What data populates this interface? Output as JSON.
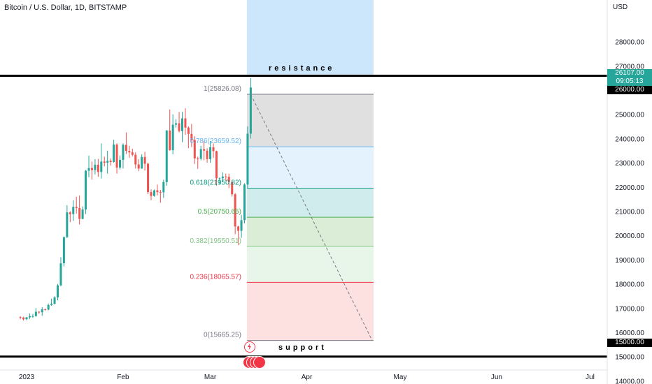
{
  "title": "Bitcoin / U.S. Dollar, 1D, BITSTAMP",
  "colors": {
    "up": "#26a69a",
    "down": "#ef5350",
    "resistance_zone": "#bbdefb",
    "fib_1_786": "#e0e0e0",
    "fib_786_618": "#e3f2fd",
    "fib_618_5": "#d1ecec",
    "fib_5_382": "#dcedd7",
    "fib_382_236": "#e8f5e9",
    "fib_236_0": "#fde0e0"
  },
  "axis": {
    "currency": "USD",
    "y_ticks": [
      "28000.00",
      "27000.00",
      "26000.00",
      "25000.00",
      "24000.00",
      "23000.00",
      "22000.00",
      "21000.00",
      "20000.00",
      "19000.00",
      "18000.00",
      "17000.00",
      "16000.00",
      "15000.00",
      "14000.00"
    ],
    "x_ticks": [
      "2023",
      "Feb",
      "Mar",
      "Apr",
      "May",
      "Jun",
      "Jul"
    ]
  },
  "price_tags": {
    "current_price": "26107.00",
    "countdown": "09:05:13",
    "resistance": "26000.00",
    "support": "15000.00"
  },
  "annotations": {
    "resistance_label": "resistance",
    "support_label": "support"
  },
  "fib_labels": [
    {
      "text": "1(25826.08)",
      "color": "#787b86",
      "level": 25826.08
    },
    {
      "text": "0.786(23659.52)",
      "color": "#64b5f6",
      "level": 23659.52
    },
    {
      "text": "0.618(21950.82)",
      "color": "#089981",
      "level": 21950.82
    },
    {
      "text": "0.5(20750.66)",
      "color": "#4caf50",
      "level": 20750.66
    },
    {
      "text": "0.382(19550.51)",
      "color": "#81c784",
      "level": 19550.51
    },
    {
      "text": "0.236(18065.57)",
      "color": "#f23645",
      "level": 18065.57
    },
    {
      "text": "0(15665.25)",
      "color": "#787b86",
      "level": 15665.25
    }
  ],
  "chart_data": {
    "type": "candlestick",
    "title": "Bitcoin / U.S. Dollar, 1D, BITSTAMP",
    "y_range": [
      14000,
      28600
    ],
    "x_range": [
      "2022-12-30",
      "2023-07-05"
    ],
    "grid": false,
    "horizontal_lines": [
      {
        "price": 26000,
        "label": "resistance"
      },
      {
        "price": 15000,
        "label": "support"
      }
    ],
    "resistance_zone": {
      "from": 26000,
      "to": 28600,
      "x_from": "2023-03-13",
      "x_to": "2023-04-22"
    },
    "fibonacci": {
      "x_from": "2023-03-13",
      "x_to": "2023-04-22",
      "levels": [
        {
          "ratio": 1,
          "price": 25826.08
        },
        {
          "ratio": 0.786,
          "price": 23659.52
        },
        {
          "ratio": 0.618,
          "price": 21950.82
        },
        {
          "ratio": 0.5,
          "price": 20750.66
        },
        {
          "ratio": 0.382,
          "price": 19550.51
        },
        {
          "ratio": 0.236,
          "price": 18065.57
        },
        {
          "ratio": 0,
          "price": 15665.25
        }
      ]
    },
    "trend_line": {
      "from": {
        "date": "2023-03-14",
        "price": 25826.08
      },
      "to": {
        "date": "2023-04-22",
        "price": 15665.25
      }
    },
    "candles": [
      {
        "d": "2022-12-30",
        "o": 16630,
        "h": 16660,
        "l": 16540,
        "c": 16610
      },
      {
        "d": "2022-12-31",
        "o": 16610,
        "h": 16640,
        "l": 16490,
        "c": 16540
      },
      {
        "d": "2023-01-01",
        "o": 16540,
        "h": 16630,
        "l": 16500,
        "c": 16620
      },
      {
        "d": "2023-01-02",
        "o": 16620,
        "h": 16780,
        "l": 16550,
        "c": 16670
      },
      {
        "d": "2023-01-03",
        "o": 16670,
        "h": 16760,
        "l": 16600,
        "c": 16670
      },
      {
        "d": "2023-01-04",
        "o": 16670,
        "h": 17000,
        "l": 16650,
        "c": 16850
      },
      {
        "d": "2023-01-05",
        "o": 16850,
        "h": 16880,
        "l": 16760,
        "c": 16830
      },
      {
        "d": "2023-01-06",
        "o": 16830,
        "h": 17040,
        "l": 16680,
        "c": 16950
      },
      {
        "d": "2023-01-07",
        "o": 16950,
        "h": 16980,
        "l": 16900,
        "c": 16940
      },
      {
        "d": "2023-01-08",
        "o": 16940,
        "h": 17190,
        "l": 16910,
        "c": 17130
      },
      {
        "d": "2023-01-09",
        "o": 17130,
        "h": 17390,
        "l": 17100,
        "c": 17180
      },
      {
        "d": "2023-01-10",
        "o": 17180,
        "h": 17490,
        "l": 17150,
        "c": 17440
      },
      {
        "d": "2023-01-11",
        "o": 17440,
        "h": 18000,
        "l": 17320,
        "c": 17940
      },
      {
        "d": "2023-01-12",
        "o": 17940,
        "h": 19100,
        "l": 17900,
        "c": 18850
      },
      {
        "d": "2023-01-13",
        "o": 18850,
        "h": 19950,
        "l": 18720,
        "c": 19930
      },
      {
        "d": "2023-01-14",
        "o": 19930,
        "h": 21250,
        "l": 19890,
        "c": 20950
      },
      {
        "d": "2023-01-15",
        "o": 20950,
        "h": 21000,
        "l": 20550,
        "c": 20880
      },
      {
        "d": "2023-01-16",
        "o": 20880,
        "h": 21450,
        "l": 20600,
        "c": 21180
      },
      {
        "d": "2023-01-17",
        "o": 21180,
        "h": 21600,
        "l": 20900,
        "c": 21130
      },
      {
        "d": "2023-01-18",
        "o": 21130,
        "h": 21650,
        "l": 20450,
        "c": 20680
      },
      {
        "d": "2023-01-19",
        "o": 20680,
        "h": 21200,
        "l": 20670,
        "c": 21070
      },
      {
        "d": "2023-01-20",
        "o": 21070,
        "h": 22700,
        "l": 20880,
        "c": 22670
      },
      {
        "d": "2023-01-21",
        "o": 22670,
        "h": 23300,
        "l": 22400,
        "c": 22780
      },
      {
        "d": "2023-01-22",
        "o": 22780,
        "h": 23050,
        "l": 22300,
        "c": 22700
      },
      {
        "d": "2023-01-23",
        "o": 22700,
        "h": 23150,
        "l": 22520,
        "c": 22920
      },
      {
        "d": "2023-01-24",
        "o": 22920,
        "h": 23160,
        "l": 22420,
        "c": 22620
      },
      {
        "d": "2023-01-25",
        "o": 22620,
        "h": 23800,
        "l": 22350,
        "c": 23050
      },
      {
        "d": "2023-01-26",
        "o": 23050,
        "h": 23250,
        "l": 22850,
        "c": 23000
      },
      {
        "d": "2023-01-27",
        "o": 23000,
        "h": 23500,
        "l": 22550,
        "c": 23080
      },
      {
        "d": "2023-01-28",
        "o": 23080,
        "h": 23180,
        "l": 22880,
        "c": 23030
      },
      {
        "d": "2023-01-29",
        "o": 23030,
        "h": 23950,
        "l": 23000,
        "c": 23750
      },
      {
        "d": "2023-01-30",
        "o": 23750,
        "h": 23800,
        "l": 22550,
        "c": 22800
      },
      {
        "d": "2023-01-31",
        "o": 22800,
        "h": 23300,
        "l": 22720,
        "c": 23120
      },
      {
        "d": "2023-02-01",
        "o": 23120,
        "h": 23800,
        "l": 22760,
        "c": 23740
      },
      {
        "d": "2023-02-02",
        "o": 23740,
        "h": 24250,
        "l": 23360,
        "c": 23490
      },
      {
        "d": "2023-02-03",
        "o": 23490,
        "h": 23700,
        "l": 23200,
        "c": 23430
      },
      {
        "d": "2023-02-04",
        "o": 23430,
        "h": 23580,
        "l": 23260,
        "c": 23330
      },
      {
        "d": "2023-02-05",
        "o": 23330,
        "h": 23430,
        "l": 22760,
        "c": 22930
      },
      {
        "d": "2023-02-06",
        "o": 22930,
        "h": 23150,
        "l": 22650,
        "c": 22760
      },
      {
        "d": "2023-02-07",
        "o": 22760,
        "h": 23350,
        "l": 22750,
        "c": 23240
      },
      {
        "d": "2023-02-08",
        "o": 23240,
        "h": 23450,
        "l": 22680,
        "c": 22960
      },
      {
        "d": "2023-02-09",
        "o": 22960,
        "h": 23000,
        "l": 21700,
        "c": 21790
      },
      {
        "d": "2023-02-10",
        "o": 21790,
        "h": 21900,
        "l": 21450,
        "c": 21630
      },
      {
        "d": "2023-02-11",
        "o": 21630,
        "h": 21900,
        "l": 21600,
        "c": 21860
      },
      {
        "d": "2023-02-12",
        "o": 21860,
        "h": 22100,
        "l": 21650,
        "c": 21790
      },
      {
        "d": "2023-02-13",
        "o": 21790,
        "h": 21880,
        "l": 21350,
        "c": 21780
      },
      {
        "d": "2023-02-14",
        "o": 21780,
        "h": 22300,
        "l": 21550,
        "c": 22200
      },
      {
        "d": "2023-02-15",
        "o": 22200,
        "h": 24350,
        "l": 22050,
        "c": 24330
      },
      {
        "d": "2023-02-16",
        "o": 24330,
        "h": 25200,
        "l": 23500,
        "c": 23520
      },
      {
        "d": "2023-02-17",
        "o": 23520,
        "h": 25000,
        "l": 23350,
        "c": 24570
      },
      {
        "d": "2023-02-18",
        "o": 24570,
        "h": 24800,
        "l": 24450,
        "c": 24630
      },
      {
        "d": "2023-02-19",
        "o": 24630,
        "h": 25100,
        "l": 24250,
        "c": 24310
      },
      {
        "d": "2023-02-20",
        "o": 24310,
        "h": 25100,
        "l": 23850,
        "c": 24830
      },
      {
        "d": "2023-02-21",
        "o": 24830,
        "h": 25250,
        "l": 24150,
        "c": 24450
      },
      {
        "d": "2023-02-22",
        "o": 24450,
        "h": 24500,
        "l": 23600,
        "c": 24190
      },
      {
        "d": "2023-02-23",
        "o": 24190,
        "h": 24600,
        "l": 23650,
        "c": 23940
      },
      {
        "d": "2023-02-24",
        "o": 23940,
        "h": 24100,
        "l": 22950,
        "c": 23180
      },
      {
        "d": "2023-02-25",
        "o": 23180,
        "h": 23250,
        "l": 22750,
        "c": 23160
      },
      {
        "d": "2023-02-26",
        "o": 23160,
        "h": 23700,
        "l": 23100,
        "c": 23560
      },
      {
        "d": "2023-02-27",
        "o": 23560,
        "h": 23900,
        "l": 23100,
        "c": 23500
      },
      {
        "d": "2023-02-28",
        "o": 23500,
        "h": 23600,
        "l": 23000,
        "c": 23150
      },
      {
        "d": "2023-03-01",
        "o": 23150,
        "h": 23900,
        "l": 23000,
        "c": 23640
      },
      {
        "d": "2023-03-02",
        "o": 23640,
        "h": 23800,
        "l": 23200,
        "c": 23480
      },
      {
        "d": "2023-03-03",
        "o": 23480,
        "h": 23500,
        "l": 22050,
        "c": 22360
      },
      {
        "d": "2023-03-04",
        "o": 22360,
        "h": 22400,
        "l": 22100,
        "c": 22360
      },
      {
        "d": "2023-03-05",
        "o": 22360,
        "h": 22600,
        "l": 22200,
        "c": 22430
      },
      {
        "d": "2023-03-06",
        "o": 22430,
        "h": 22550,
        "l": 22250,
        "c": 22420
      },
      {
        "d": "2023-03-07",
        "o": 22420,
        "h": 22550,
        "l": 21950,
        "c": 22200
      },
      {
        "d": "2023-03-08",
        "o": 22200,
        "h": 22250,
        "l": 21600,
        "c": 21700
      },
      {
        "d": "2023-03-09",
        "o": 21700,
        "h": 21750,
        "l": 20050,
        "c": 20370
      },
      {
        "d": "2023-03-10",
        "o": 20370,
        "h": 20400,
        "l": 19600,
        "c": 20190
      },
      {
        "d": "2023-03-11",
        "o": 20190,
        "h": 20850,
        "l": 19900,
        "c": 20630
      },
      {
        "d": "2023-03-12",
        "o": 20630,
        "h": 22150,
        "l": 20500,
        "c": 22100
      },
      {
        "d": "2023-03-13",
        "o": 22100,
        "h": 24500,
        "l": 21950,
        "c": 24200
      },
      {
        "d": "2023-03-14",
        "o": 24200,
        "h": 26500,
        "l": 24000,
        "c": 26107
      }
    ]
  }
}
